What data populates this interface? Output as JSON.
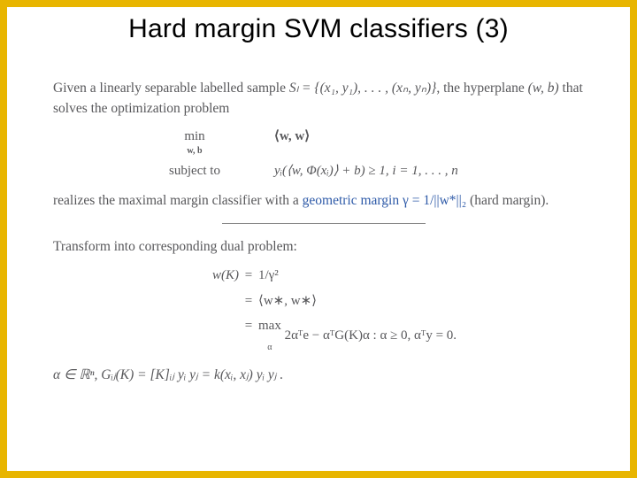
{
  "colors": {
    "border": "#e8b500",
    "text": "#57575a",
    "accent": "#2e5aa8",
    "title": "#000000",
    "background": "#ffffff"
  },
  "typography": {
    "title_font": "Arial",
    "title_size_pt": 22,
    "body_font": "Georgia/Times",
    "body_size_pt": 12
  },
  "title": "Hard margin SVM classifiers (3)",
  "p1a": "Given a linearly separable labelled sample ",
  "p1b": "Sₗ = {(x₁, y₁), . . . , (xₙ, yₙ)}",
  "p1c": ", the hyperplane ",
  "p1d": "(w, b)",
  "p1e": " that solves the optimization problem",
  "opt": {
    "min_label": "min",
    "min_sub": "w, b",
    "objective": "⟨w, w⟩",
    "subj_label": "subject  to",
    "constraint": "yᵢ(⟨w, Φ(xᵢ)⟩ + b) ≥ 1, i = 1, . . . , n"
  },
  "p2a": "realizes the maximal margin classifier with a ",
  "p2b": "geometric margin γ = 1/||w*||₂",
  "p2c": " (hard margin).",
  "p3": "Transform into corresponding dual problem:",
  "dual": {
    "lhs": "w(K)",
    "r1": "1/γ²",
    "r2": "⟨w∗, w∗⟩",
    "r3_max": "max",
    "r3_sub": "α",
    "r3_body": " 2αᵀe − αᵀG(K)α  :  α ≥ 0,  αᵀy = 0."
  },
  "p4": "α ∈ ℝⁿ,  Gᵢⱼ(K) = [K]ᵢⱼ yᵢ yⱼ = k(xᵢ, xⱼ) yᵢ yⱼ ."
}
